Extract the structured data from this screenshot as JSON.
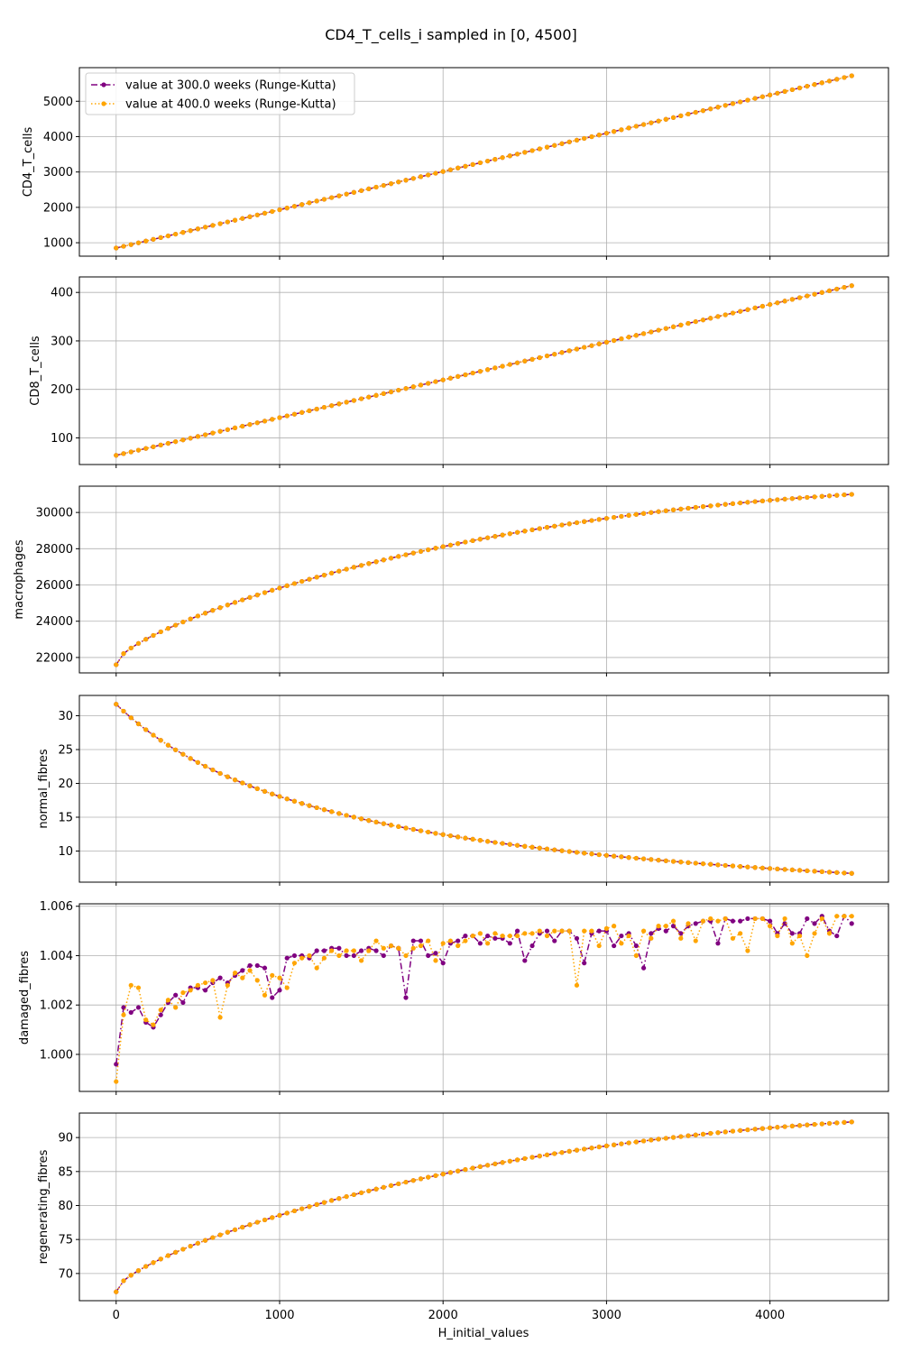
{
  "figure": {
    "title": "CD4_T_cells_i sampled in [0, 4500]",
    "xlabel": "H_initial_values"
  },
  "chart_data": {
    "type": "line",
    "title": "CD4_T_cells_i sampled in [0, 4500]",
    "xlabel": "H_initial_values",
    "xlim": [
      -225,
      4725
    ],
    "x_ticks": [
      0,
      1000,
      2000,
      3000,
      4000
    ],
    "grid": true,
    "legend_position": "top-left",
    "x_sampling": {
      "start": 0,
      "stop": 4500,
      "count": 100
    },
    "series_styles": [
      {
        "name": "value at 300.0 weeks (Runge-Kutta)",
        "color": "#800080",
        "dash": "dash-dot",
        "marker": "circle"
      },
      {
        "name": "value at 400.0 weeks (Runge-Kutta)",
        "color": "#FFA500",
        "dash": "dotted",
        "marker": "circle"
      }
    ],
    "panels": [
      {
        "ylabel": "CD4_T_cells",
        "ylim": [
          620,
          5950
        ],
        "y_ticks": [
          1000,
          2000,
          3000,
          4000,
          5000
        ],
        "shape": "linear",
        "start": 850,
        "end": 5720,
        "series": [
          {
            "name": "value at 300.0 weeks (Runge-Kutta)",
            "noise": []
          },
          {
            "name": "value at 400.0 weeks (Runge-Kutta)",
            "noise": []
          }
        ]
      },
      {
        "ylabel": "CD8_T_cells",
        "ylim": [
          45,
          432
        ],
        "y_ticks": [
          100,
          200,
          300,
          400
        ],
        "shape": "linear",
        "start": 64,
        "end": 414,
        "series": [
          {
            "name": "value at 300.0 weeks (Runge-Kutta)",
            "noise": []
          },
          {
            "name": "value at 400.0 weeks (Runge-Kutta)",
            "noise": []
          }
        ]
      },
      {
        "ylabel": "macrophages",
        "ylim": [
          21150,
          31450
        ],
        "y_ticks": [
          22000,
          24000,
          26000,
          28000,
          30000
        ],
        "shape": "sqrt",
        "start": 21600,
        "end": 31000,
        "series": [
          {
            "name": "value at 300.0 weeks (Runge-Kutta)",
            "noise": []
          },
          {
            "name": "value at 400.0 weeks (Runge-Kutta)",
            "noise": []
          }
        ]
      },
      {
        "ylabel": "normal_fibres",
        "ylim": [
          5.4,
          33.0
        ],
        "y_ticks": [
          10,
          15,
          20,
          25,
          30
        ],
        "shape": "decay",
        "start": 31.7,
        "end": 6.7,
        "series": [
          {
            "name": "value at 300.0 weeks (Runge-Kutta)",
            "noise": []
          },
          {
            "name": "value at 400.0 weeks (Runge-Kutta)",
            "noise": []
          }
        ]
      },
      {
        "ylabel": "damaged_fibres",
        "ylim": [
          0.9985,
          1.0061
        ],
        "y_ticks": [
          1.0,
          1.002,
          1.004,
          1.006
        ],
        "y_tick_labels": [
          "1.000",
          "1.002",
          "1.004",
          "1.006"
        ],
        "shape": "damaged",
        "series": [
          {
            "name": "value at 300.0 weeks (Runge-Kutta)",
            "values": [
              0.9996,
              1.0019,
              1.0017,
              1.0019,
              1.0013,
              1.0011,
              1.0016,
              1.0021,
              1.0024,
              1.0021,
              1.0027,
              1.0027,
              1.0026,
              1.0029,
              1.0031,
              1.0029,
              1.0032,
              1.0034,
              1.0036,
              1.0036,
              1.0035,
              1.0023,
              1.0026,
              1.0039,
              1.004,
              1.004,
              1.0039,
              1.0042,
              1.0042,
              1.0043,
              1.0043,
              1.004,
              1.004,
              1.0042,
              1.0043,
              1.0042,
              1.004,
              1.0044,
              1.0043,
              1.0023,
              1.0046,
              1.0046,
              1.004,
              1.0041,
              1.0037,
              1.0045,
              1.0046,
              1.0048,
              1.0048,
              1.0045,
              1.0048,
              1.0047,
              1.0047,
              1.0045,
              1.005,
              1.0038,
              1.0044,
              1.0049,
              1.005,
              1.0046,
              1.005,
              1.005,
              1.0047,
              1.0037,
              1.0049,
              1.005,
              1.005,
              1.0044,
              1.0048,
              1.0049,
              1.0044,
              1.0035,
              1.0049,
              1.0051,
              1.005,
              1.0052,
              1.0049,
              1.0052,
              1.0053,
              1.0054,
              1.0054,
              1.0045,
              1.0055,
              1.0054,
              1.0054,
              1.0055,
              1.0055,
              1.0055,
              1.0054,
              1.0049,
              1.0053,
              1.0049,
              1.0049,
              1.0055,
              1.0053,
              1.0056,
              1.005,
              1.0048,
              1.0056,
              1.0053
            ]
          },
          {
            "name": "value at 400.0 weeks (Runge-Kutta)",
            "values": [
              0.9989,
              1.0016,
              1.0028,
              1.0027,
              1.0014,
              1.0012,
              1.0018,
              1.0022,
              1.0019,
              1.0025,
              1.0026,
              1.0028,
              1.0029,
              1.003,
              1.0015,
              1.0028,
              1.0033,
              1.0031,
              1.0034,
              1.003,
              1.0024,
              1.0032,
              1.0031,
              1.0027,
              1.0037,
              1.0039,
              1.004,
              1.0035,
              1.0039,
              1.0042,
              1.004,
              1.0042,
              1.0042,
              1.0038,
              1.0042,
              1.0046,
              1.0043,
              1.0044,
              1.0043,
              1.004,
              1.0043,
              1.0044,
              1.0046,
              1.0038,
              1.0045,
              1.0046,
              1.0044,
              1.0046,
              1.0048,
              1.0049,
              1.0045,
              1.0049,
              1.0048,
              1.0048,
              1.0048,
              1.0049,
              1.0049,
              1.005,
              1.0048,
              1.005,
              1.005,
              1.005,
              1.0028,
              1.005,
              1.005,
              1.0044,
              1.0051,
              1.0052,
              1.0045,
              1.0048,
              1.004,
              1.005,
              1.0047,
              1.0052,
              1.0052,
              1.0054,
              1.0047,
              1.0053,
              1.0046,
              1.0054,
              1.0055,
              1.0054,
              1.0055,
              1.0047,
              1.0049,
              1.0042,
              1.0055,
              1.0055,
              1.0052,
              1.0048,
              1.0055,
              1.0045,
              1.0048,
              1.004,
              1.0049,
              1.0055,
              1.0049,
              1.0056,
              1.0056,
              1.0056
            ]
          }
        ]
      },
      {
        "ylabel": "regenerating_fibres",
        "ylim": [
          66.0,
          93.6
        ],
        "y_ticks": [
          70,
          75,
          80,
          85,
          90
        ],
        "shape": "sqrt",
        "start": 67.3,
        "end": 92.3,
        "series": [
          {
            "name": "value at 300.0 weeks (Runge-Kutta)",
            "noise": []
          },
          {
            "name": "value at 400.0 weeks (Runge-Kutta)",
            "noise": []
          }
        ]
      }
    ]
  }
}
